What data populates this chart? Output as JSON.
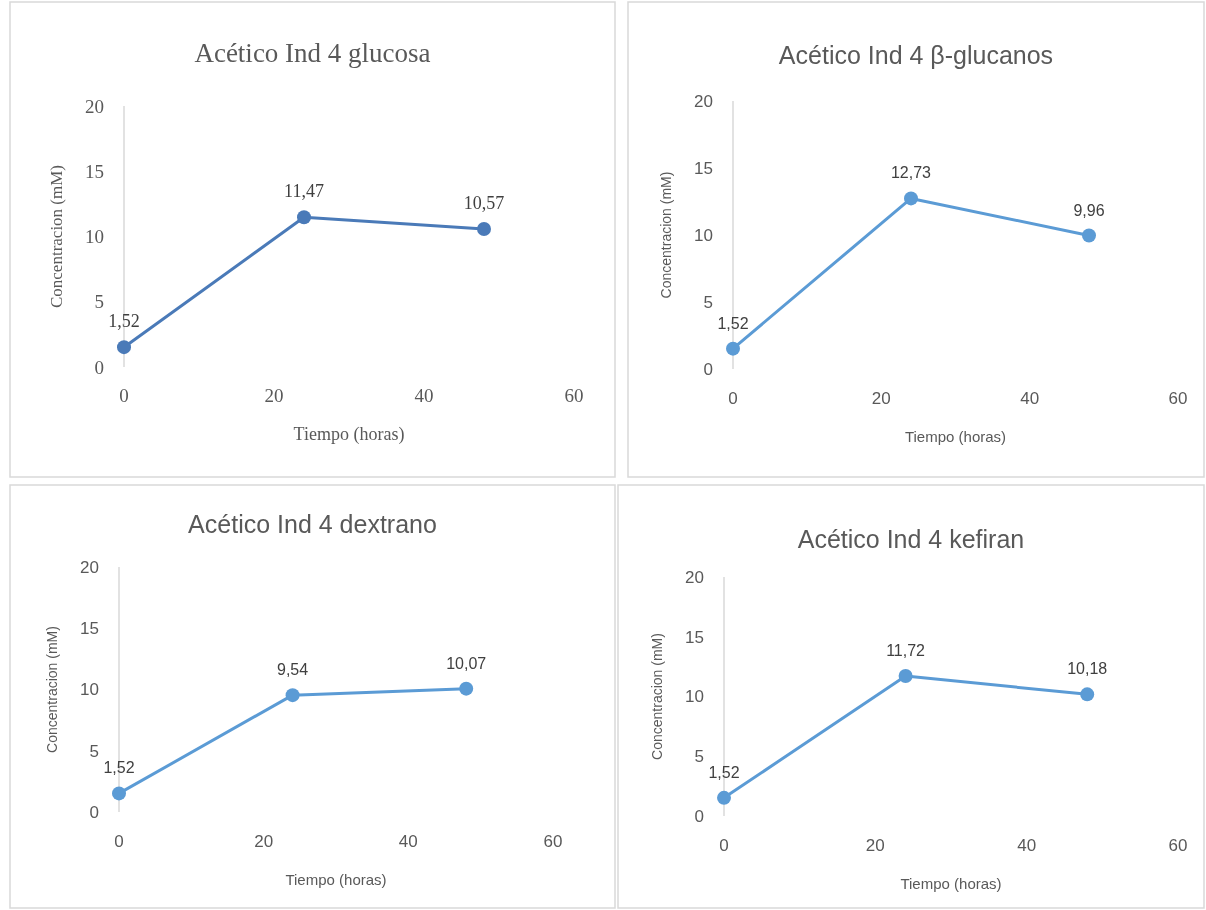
{
  "chart_data": [
    {
      "type": "line",
      "title": "Acético Ind 4 glucosa",
      "xlabel": "Tiempo (horas)",
      "ylabel": "Concentracion (mM)",
      "x": [
        0,
        24,
        48
      ],
      "series": [
        {
          "color": "#4a7ab8",
          "values": [
            1.52,
            11.47,
            10.57
          ],
          "value_labels": [
            "1,52",
            "11,47",
            "10,57"
          ]
        }
      ],
      "xlim": [
        0,
        60
      ],
      "xticks": [
        0,
        20,
        40,
        60
      ],
      "ylim": [
        0,
        20
      ],
      "yticks": [
        0,
        5,
        10,
        15,
        20
      ],
      "grid": false,
      "marker": "circle",
      "line_style": "solid"
    },
    {
      "type": "line",
      "title": "Acético Ind 4 β-glucanos",
      "xlabel": "Tiempo (horas)",
      "ylabel": "Concentracion (mM)",
      "x": [
        0,
        24,
        48
      ],
      "series": [
        {
          "color": "#5b9bd5",
          "values": [
            1.52,
            12.73,
            9.96
          ],
          "value_labels": [
            "1,52",
            "12,73",
            "9,96"
          ]
        }
      ],
      "xlim": [
        0,
        60
      ],
      "xticks": [
        0,
        20,
        40,
        60
      ],
      "ylim": [
        0,
        20
      ],
      "yticks": [
        0,
        5,
        10,
        15,
        20
      ],
      "grid": false,
      "marker": "circle",
      "line_style": "solid"
    },
    {
      "type": "line",
      "title": "Acético Ind 4 dextrano",
      "xlabel": "Tiempo (horas)",
      "ylabel": "Concentracion (mM)",
      "x": [
        0,
        24,
        48
      ],
      "series": [
        {
          "color": "#5b9bd5",
          "values": [
            1.52,
            9.54,
            10.07
          ],
          "value_labels": [
            "1,52",
            "9,54",
            "10,07"
          ]
        }
      ],
      "xlim": [
        0,
        60
      ],
      "xticks": [
        0,
        20,
        40,
        60
      ],
      "ylim": [
        0,
        20
      ],
      "yticks": [
        0,
        5,
        10,
        15,
        20
      ],
      "grid": false,
      "marker": "circle",
      "line_style": "solid"
    },
    {
      "type": "line",
      "title": "Acético Ind 4 kefiran",
      "xlabel": "Tiempo (horas)",
      "ylabel": "Concentracion (mM)",
      "x": [
        0,
        24,
        48
      ],
      "series": [
        {
          "color": "#5b9bd5",
          "values": [
            1.52,
            11.72,
            10.18
          ],
          "value_labels": [
            "1,52",
            "11,72",
            "10,18"
          ]
        }
      ],
      "xlim": [
        0,
        60
      ],
      "xticks": [
        0,
        20,
        40,
        60
      ],
      "ylim": [
        0,
        20
      ],
      "yticks": [
        0,
        5,
        10,
        15,
        20
      ],
      "grid": false,
      "marker": "circle",
      "line_style": "solid"
    }
  ]
}
